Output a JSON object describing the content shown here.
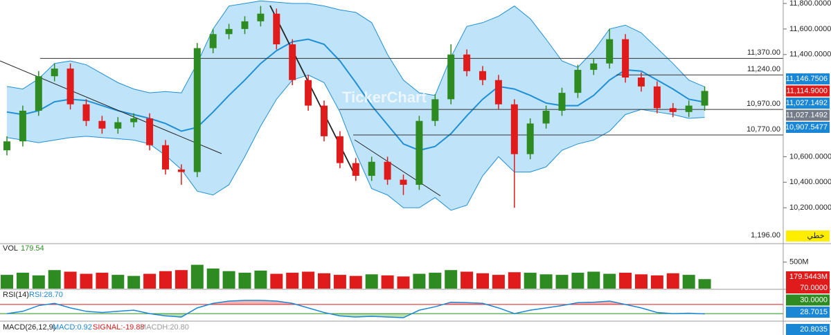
{
  "chart_data": [
    {
      "type": "candlestick",
      "watermark": "TickerChart",
      "ylim": [
        9930,
        11827
      ],
      "yticks": [
        {
          "value": 11800,
          "label": "11,800.0000"
        },
        {
          "value": 11600,
          "label": "11,600.0000"
        },
        {
          "value": 11400,
          "label": "11,400.0000"
        },
        {
          "value": 10600,
          "label": "10,600.0000"
        },
        {
          "value": 10400,
          "label": "10,400.0000"
        },
        {
          "value": 10200,
          "label": "10,200.0000"
        }
      ],
      "up_color": "#2e8b22",
      "down_color": "#e01b1b",
      "open": [
        10650,
        10720,
        10960,
        11230,
        11290,
        11010,
        10880,
        10820,
        10870,
        10900,
        10690,
        10500,
        10480,
        11450,
        11560,
        11600,
        11660,
        11720,
        11480,
        11200,
        11000,
        10760,
        10550,
        10450,
        10560,
        10420,
        10380,
        10880,
        11050,
        11400,
        11270,
        11200,
        11010,
        10620,
        10860,
        10960,
        11100,
        11280,
        11330,
        11520,
        11220,
        11150,
        10980,
        10950,
        11000
      ],
      "high": [
        10760,
        11000,
        11270,
        11330,
        11330,
        11050,
        10920,
        10910,
        10940,
        10940,
        10730,
        10540,
        11490,
        11600,
        11640,
        11700,
        11780,
        11760,
        11520,
        11240,
        11040,
        10800,
        10590,
        10600,
        10600,
        10460,
        10920,
        11090,
        11480,
        11440,
        11310,
        11240,
        11050,
        10900,
        11000,
        11140,
        11320,
        11370,
        11600,
        11560,
        11260,
        11190,
        11020,
        11040,
        11150
      ],
      "low": [
        10610,
        10680,
        10920,
        11190,
        10970,
        10840,
        10780,
        10780,
        10830,
        10650,
        10460,
        10380,
        10440,
        11410,
        11520,
        11560,
        11620,
        11440,
        11160,
        10960,
        10720,
        10510,
        10410,
        10410,
        10380,
        10300,
        10340,
        10840,
        11010,
        11230,
        11160,
        10970,
        10200,
        10580,
        10820,
        10920,
        11060,
        11240,
        11290,
        11180,
        11110,
        10940,
        10910,
        10910,
        10960
      ],
      "close": [
        10720,
        10960,
        11230,
        11290,
        11010,
        10880,
        10820,
        10870,
        10900,
        10690,
        10500,
        10480,
        11450,
        11560,
        11600,
        11660,
        11720,
        11480,
        11200,
        11000,
        10760,
        10550,
        10450,
        10560,
        10420,
        10380,
        10880,
        11050,
        11400,
        11270,
        11200,
        11010,
        10620,
        10860,
        10960,
        11100,
        11280,
        11330,
        11520,
        11220,
        11150,
        10980,
        10950,
        11000,
        11114.9
      ],
      "bollinger": {
        "color": "#1f8fd6",
        "fill": "#bfe3f8",
        "upper": [
          11150,
          11130,
          11210,
          11330,
          11350,
          11320,
          11250,
          11180,
          11130,
          11100,
          11110,
          11100,
          11330,
          11600,
          11780,
          11800,
          11820,
          11810,
          11800,
          11800,
          11780,
          11750,
          11730,
          11650,
          11400,
          11200,
          11100,
          11080,
          11380,
          11620,
          11650,
          11700,
          11780,
          11680,
          11520,
          11350,
          11300,
          11430,
          11600,
          11630,
          11570,
          11450,
          11330,
          11200,
          11146.7506
        ],
        "middle": [
          10950,
          10930,
          10960,
          11030,
          11050,
          11040,
          11000,
          10960,
          10930,
          10900,
          10860,
          10800,
          10830,
          10950,
          11080,
          11200,
          11330,
          11430,
          11500,
          11520,
          11480,
          11350,
          11180,
          11000,
          10850,
          10700,
          10650,
          10680,
          10780,
          10920,
          11050,
          11150,
          11130,
          11080,
          11020,
          11000,
          11000,
          11080,
          11200,
          11280,
          11270,
          11200,
          11130,
          11050,
          11027.1492
        ],
        "lower": [
          10750,
          10730,
          10710,
          10730,
          10750,
          10760,
          10750,
          10740,
          10730,
          10700,
          10610,
          10500,
          10330,
          10300,
          10380,
          10600,
          10840,
          11050,
          11200,
          11240,
          11180,
          10950,
          10630,
          10350,
          10300,
          10200,
          10200,
          10280,
          10180,
          10220,
          10450,
          10600,
          10480,
          10480,
          10520,
          10650,
          10700,
          10730,
          10800,
          10930,
          10970,
          10950,
          10930,
          10900,
          10907.5477
        ]
      },
      "levels": [
        {
          "value": 11370,
          "label": "11,370.00"
        },
        {
          "value": 11240,
          "label": "11,240.00"
        },
        {
          "value": 10970,
          "label": "10,970.00"
        },
        {
          "value": 10770,
          "label": "10,770.00"
        }
      ],
      "bottom_label": "1,196.00",
      "mode_button": "خطي",
      "badges": [
        {
          "label": "11,146.7506",
          "color": "#1a86d6"
        },
        {
          "label": "11,114.9000",
          "color": "#e01b1b"
        },
        {
          "label": "11,027.1492",
          "color": "#1a86d6"
        },
        {
          "label": "11,027.1492",
          "color": "#737b88"
        },
        {
          "label": "10,907.5477",
          "color": "#1a86d6"
        }
      ]
    },
    {
      "type": "volume",
      "header": "VOL",
      "header_value": "179.54",
      "ylim": [
        0,
        810
      ],
      "yticks": [
        {
          "value": 500,
          "label": "500M"
        }
      ],
      "values": [
        260,
        300,
        250,
        350,
        320,
        280,
        300,
        260,
        240,
        280,
        330,
        350,
        450,
        380,
        330,
        300,
        340,
        280,
        300,
        320,
        290,
        260,
        240,
        270,
        250,
        230,
        280,
        300,
        350,
        320,
        290,
        260,
        310,
        300,
        270,
        260,
        300,
        320,
        280,
        300,
        270,
        250,
        290,
        260,
        179.5443
      ],
      "badges": [
        {
          "label": "179.5443M",
          "color": "#e01b1b"
        }
      ]
    },
    {
      "type": "rsi",
      "header": "RSI(14)",
      "header_value": "RSI:28.70",
      "ylim": [
        0,
        100
      ],
      "upper_level": 70,
      "lower_level": 30,
      "color": "#1a86d6",
      "values": [
        30,
        40,
        65,
        75,
        55,
        40,
        35,
        40,
        45,
        30,
        20,
        15,
        55,
        75,
        85,
        88,
        88,
        85,
        75,
        55,
        35,
        20,
        15,
        18,
        15,
        12,
        45,
        60,
        80,
        78,
        75,
        55,
        30,
        45,
        55,
        65,
        78,
        80,
        85,
        70,
        55,
        35,
        30,
        32,
        28.7015
      ],
      "badges": [
        {
          "label": "70.0000",
          "color": "#e01b1b"
        },
        {
          "label": "30.0000",
          "color": "#2e8b22"
        },
        {
          "label": "28.7015",
          "color": "#1a86d6"
        }
      ]
    },
    {
      "type": "macd",
      "header": "MACD(26,12,9)",
      "macd": "MACD:0.92",
      "signal": "SIGNAL:-19.88",
      "macdh": "MACDH:20.80",
      "badges": [
        {
          "label": "20.8035",
          "color": "#1a86d6"
        }
      ]
    }
  ]
}
